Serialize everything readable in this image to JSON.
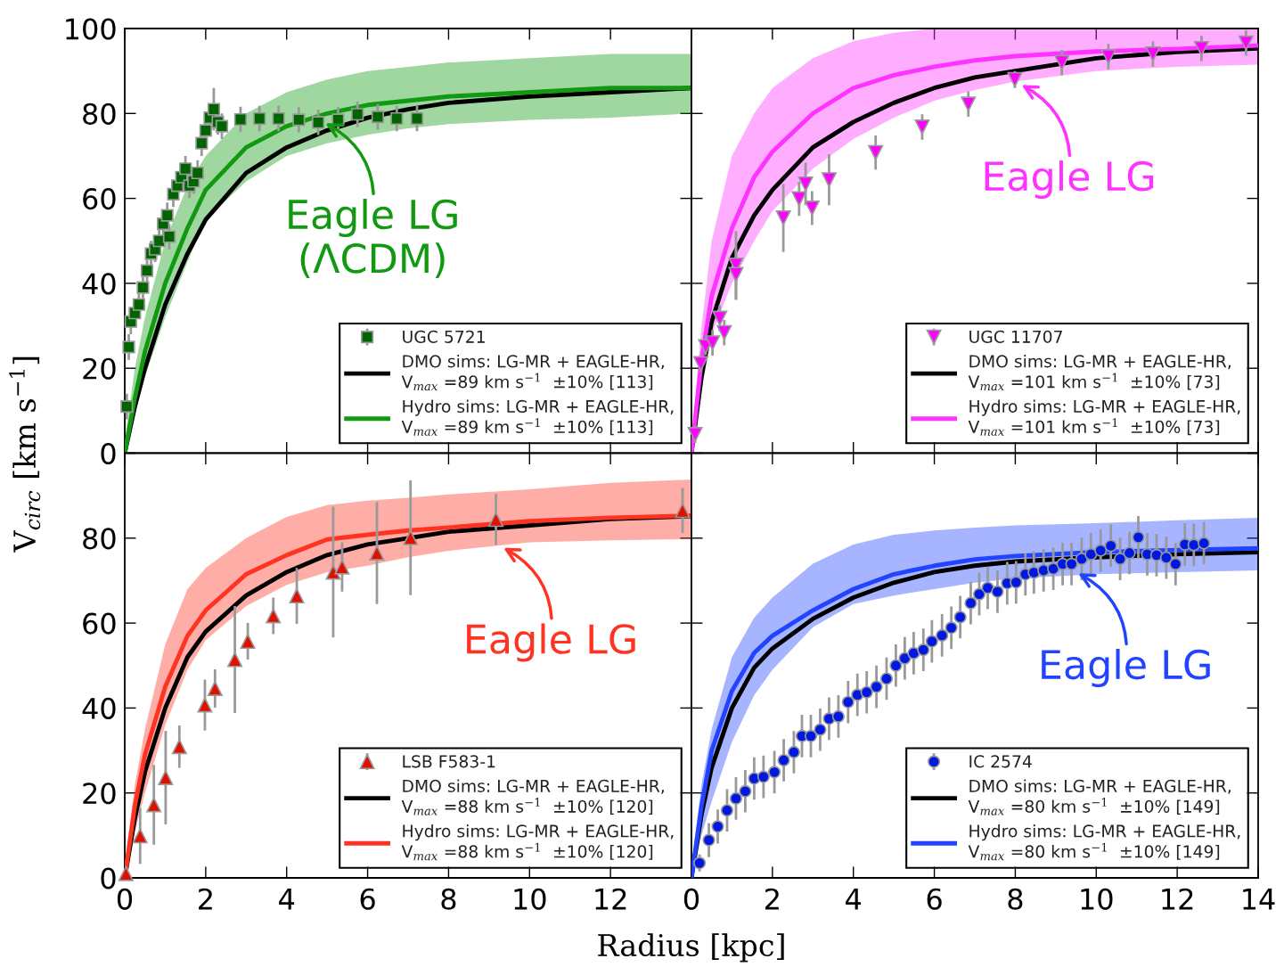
{
  "chart_data": [
    {
      "type": "line",
      "xlim": [
        0,
        14
      ],
      "ylim": [
        0,
        100
      ],
      "xticks": [
        0,
        2,
        4,
        6,
        8,
        10,
        12,
        14
      ],
      "yticks": [
        0,
        20,
        40,
        60,
        80,
        100
      ],
      "tick_labels": "y",
      "grid": false,
      "legend": "bottom right",
      "series": [
        {
          "type": "scatter",
          "name": "UGC 5721",
          "color": "#006400",
          "marker": "square",
          "x": [
            0.05,
            0.1,
            0.15,
            0.25,
            0.35,
            0.45,
            0.55,
            0.65,
            0.75,
            0.85,
            0.95,
            1.05,
            1.1,
            1.2,
            1.3,
            1.4,
            1.5,
            1.6,
            1.7,
            1.8,
            1.9,
            2.0,
            2.1,
            2.2,
            2.3,
            2.4,
            2.86,
            3.33,
            3.8,
            4.3,
            4.78,
            5.27,
            5.75,
            6.25,
            6.72,
            7.22
          ],
          "values": [
            11,
            25,
            31,
            33,
            35,
            39,
            43,
            47,
            48,
            50,
            54,
            56,
            51,
            61,
            63,
            65,
            67,
            63,
            64,
            66,
            73,
            76,
            79,
            81,
            78,
            77,
            78.6,
            78.8,
            78.8,
            78.5,
            77.9,
            78.5,
            79.8,
            79.2,
            78.8,
            78.8
          ],
          "errors": [
            3,
            3,
            3,
            3,
            3,
            3,
            3,
            3,
            3,
            3,
            3,
            3,
            3,
            3,
            3,
            3,
            3,
            3,
            3,
            3,
            3,
            3,
            3,
            5,
            3,
            3,
            3,
            3,
            3,
            3,
            3,
            3,
            3,
            3,
            3,
            3
          ]
        },
        {
          "type": "line",
          "name": "DMO sims: LG-MR + EAGLE-HR,\nV$_{max}$ =89 km s$^{−1}$  ±10% [113]",
          "color": "#000000",
          "x": [
            0,
            0.25,
            0.5,
            1,
            1.55,
            2,
            3,
            4,
            5,
            6,
            7,
            8,
            10,
            12,
            14
          ],
          "values": [
            0,
            11,
            20,
            35,
            47,
            55,
            66,
            72,
            76,
            79,
            81,
            82.5,
            84,
            85,
            86
          ]
        },
        {
          "type": "line",
          "name": "Hydro sims: LG-MR + EAGLE-HR,\nV$_{max}$ =89 km s$^{−1}$  ±10% [113]",
          "color": "#119911",
          "x": [
            0,
            0.25,
            0.5,
            1,
            1.55,
            2,
            3,
            4,
            5,
            6,
            7,
            8,
            10,
            12,
            14
          ],
          "values": [
            0,
            13,
            24,
            40,
            53,
            62,
            72,
            77,
            80,
            82,
            83,
            84,
            85,
            86,
            86
          ],
          "lower": [
            0,
            9,
            18,
            32,
            45,
            55,
            64,
            70,
            73,
            75,
            76.5,
            77.5,
            78.5,
            79,
            80
          ],
          "upper": [
            3,
            20,
            32,
            50,
            63,
            70,
            80,
            85,
            88,
            90,
            91,
            92,
            93,
            94,
            94
          ]
        }
      ],
      "annotations": [
        {
          "text": "Eagle LG",
          "x": 4.9,
          "y": 78
        },
        "(ΛCDM)"
      ]
    },
    {
      "type": "line",
      "xlim": [
        0,
        14
      ],
      "ylim": [
        0,
        100
      ],
      "xticks": [
        0,
        2,
        4,
        6,
        8,
        10,
        12,
        14
      ],
      "yticks": [
        0,
        20,
        40,
        60,
        80,
        100
      ],
      "tick_labels": false,
      "grid": false,
      "legend": "bottom right",
      "series": [
        {
          "type": "scatter",
          "name": "UGC 11707",
          "color": "#ff00ff",
          "marker": "triangle_down",
          "x": [
            0.09,
            0.23,
            0.35,
            0.52,
            0.7,
            0.81,
            1.1,
            1.1,
            2.27,
            2.66,
            2.82,
            2.98,
            3.4,
            4.55,
            5.7,
            6.84,
            7.99,
            9.15,
            10.3,
            11.4,
            12.6,
            13.7
          ],
          "values": [
            4.4,
            21.1,
            25.1,
            26,
            31.8,
            28.4,
            44.3,
            42.1,
            55.4,
            59.9,
            63.4,
            57.7,
            64.4,
            70.8,
            76.8,
            82.2,
            88,
            92,
            93.4,
            94,
            95.3,
            96.6
          ],
          "errors": [
            2,
            2,
            2,
            3,
            3,
            3,
            8,
            6,
            8,
            4,
            5,
            4,
            6,
            4,
            3,
            3,
            2,
            3,
            3,
            3,
            3,
            3
          ]
        },
        {
          "type": "line",
          "name": "DMO sims: LG-MR + EAGLE-HR,\nV$_{max}$ =101 km s$^{−1}$  ±10% [73]",
          "color": "#000000",
          "x": [
            0,
            0.25,
            0.5,
            1,
            1.55,
            2,
            3,
            4,
            5,
            6,
            7,
            8,
            10,
            12,
            14
          ],
          "values": [
            0,
            18,
            31,
            46,
            56,
            62,
            72,
            78,
            82.5,
            86,
            88.5,
            90,
            93,
            94.5,
            95.3
          ]
        },
        {
          "type": "line",
          "name": "Hydro sims: LG-MR + EAGLE-HR,\nV$_{max}$ =101 km s$^{−1}$  ±10% [73]",
          "color": "#ff33ff",
          "x": [
            0,
            0.25,
            0.5,
            1,
            1.55,
            2,
            3,
            4,
            5,
            6,
            7,
            8,
            10,
            12,
            14
          ],
          "values": [
            0,
            22,
            37,
            53,
            65,
            71,
            80,
            86,
            89,
            91,
            92.5,
            93.5,
            94.6,
            95.2,
            96
          ],
          "lower": [
            0,
            15,
            28,
            40,
            50,
            57,
            67,
            74,
            79,
            83,
            85.5,
            87.5,
            90,
            91,
            91.5
          ],
          "upper": [
            3,
            30,
            50,
            70,
            80,
            86,
            93,
            97,
            99,
            100,
            100,
            100,
            100,
            100,
            100
          ]
        }
      ],
      "annotations": [
        {
          "text": "Eagle LG",
          "x": 8.1,
          "y": 87
        }
      ]
    },
    {
      "type": "line",
      "xlabel": "Radius [kpc]",
      "ylabel": "V$_{circ}$ [km s$^{−1}$]",
      "xlim": [
        0,
        14
      ],
      "ylim": [
        0,
        100
      ],
      "xticks": [
        0,
        2,
        4,
        6,
        8,
        10,
        12,
        {
          "value": 14,
          "label": null
        }
      ],
      "yticks": [
        0,
        20,
        40,
        60,
        80,
        {
          "value": 100,
          "label": null
        }
      ],
      "grid": false,
      "legend": "bottom right",
      "series": [
        {
          "type": "scatter",
          "name": "LSB F583-1",
          "color": "#e01000",
          "marker": "triangle",
          "x": [
            0.03,
            0.38,
            0.72,
            1.01,
            1.35,
            1.98,
            2.23,
            2.72,
            3.04,
            3.67,
            4.25,
            5.15,
            5.37,
            6.23,
            7.06,
            9.17,
            13.78
          ],
          "values": [
            1,
            9.9,
            17.2,
            23.6,
            30.9,
            40.7,
            44.6,
            51.4,
            55.7,
            61.7,
            66.4,
            72,
            73.2,
            76.5,
            80.1,
            84.4,
            86.5
          ],
          "errors": [
            1,
            6.6,
            9.4,
            11,
            5,
            6,
            4.5,
            12.6,
            4.3,
            4.3,
            6.6,
            15.4,
            5.8,
            12,
            13.5,
            6,
            5.3
          ]
        },
        {
          "type": "line",
          "name": "DMO sims: LG-MR + EAGLE-HR,\nV$_{max}$ =88 km s$^{−1}$  ±10% [120]",
          "color": "#000000",
          "x": [
            0,
            0.25,
            0.5,
            1,
            1.55,
            2,
            3,
            4,
            5,
            6,
            7,
            8,
            10,
            12,
            14
          ],
          "values": [
            0,
            14,
            25,
            40,
            52,
            58,
            66.5,
            72,
            76,
            78.5,
            80,
            81.5,
            83,
            84.5,
            85.2
          ]
        },
        {
          "type": "line",
          "name": "Hydro sims: LG-MR + EAGLE-HR,\nV$_{max}$ =88 km s$^{−1}$  ±10% [120]",
          "color": "#ff3322",
          "x": [
            0,
            0.25,
            0.5,
            1,
            1.55,
            2,
            3,
            4,
            5,
            6,
            7,
            8,
            10,
            12,
            14
          ],
          "values": [
            0,
            17,
            29,
            45,
            57,
            63,
            71.5,
            76,
            79.7,
            80.8,
            81.8,
            82.5,
            84,
            84.8,
            85.3
          ],
          "lower": [
            0,
            11,
            20,
            36,
            49,
            56,
            64,
            69,
            72,
            73.5,
            75.5,
            77,
            79,
            79.5,
            79.8
          ],
          "upper": [
            3,
            22,
            35,
            55,
            68,
            73,
            80,
            85,
            87.8,
            88.8,
            89.5,
            90.3,
            91.5,
            93,
            93.8
          ]
        }
      ],
      "annotations": [
        {
          "text": "Eagle LG",
          "x": 9.3,
          "y": 78
        }
      ]
    },
    {
      "type": "line",
      "xlim": [
        0,
        14
      ],
      "ylim": [
        0,
        100
      ],
      "xticks": [
        0,
        2,
        4,
        6,
        8,
        10,
        12,
        14
      ],
      "yticks": [
        0,
        20,
        40,
        60,
        80,
        100
      ],
      "tick_labels": "x",
      "grid": false,
      "legend": "bottom right",
      "series": [
        {
          "type": "scatter",
          "name": "IC 2574",
          "color": "#0018e0",
          "marker": "circle",
          "x": [
            0.2,
            0.43,
            0.65,
            0.88,
            1.1,
            1.33,
            1.55,
            1.78,
            2.05,
            2.28,
            2.53,
            2.73,
            2.95,
            3.18,
            3.4,
            3.63,
            3.87,
            4.1,
            4.33,
            4.57,
            4.82,
            5.05,
            5.27,
            5.49,
            5.73,
            5.94,
            6.19,
            6.42,
            6.64,
            6.9,
            7.11,
            7.32,
            7.56,
            7.8,
            8.02,
            8.25,
            8.46,
            8.7,
            8.94,
            9.17,
            9.39,
            9.64,
            9.87,
            10.11,
            10.36,
            10.59,
            10.82,
            11.04,
            11.26,
            11.49,
            11.73,
            11.96,
            12.19,
            12.41,
            12.66
          ],
          "values": [
            3.5,
            8.9,
            12.1,
            15.9,
            18.7,
            20.4,
            23.4,
            23.8,
            24.9,
            27.7,
            29.6,
            33.4,
            33.4,
            34.9,
            37.5,
            38,
            41.4,
            43.1,
            43.7,
            45,
            46.9,
            50,
            51.7,
            52.9,
            53.7,
            55.7,
            57.1,
            58.9,
            61.4,
            64.7,
            66.8,
            68.3,
            67.4,
            69.4,
            69.6,
            71.5,
            71.9,
            72.4,
            72.8,
            73.9,
            73.9,
            75.1,
            76.2,
            77.1,
            78.2,
            75.1,
            76.5,
            80.2,
            76.2,
            76,
            75.4,
            73.9,
            78.5,
            78.4,
            78.8
          ],
          "errors": [
            2,
            4,
            4,
            5,
            5,
            5,
            5,
            5,
            5,
            5,
            5,
            5,
            5,
            5,
            5,
            5,
            5,
            5,
            5,
            5,
            5,
            5,
            5,
            5,
            5,
            5,
            5,
            5,
            5,
            5,
            5,
            5,
            5,
            5,
            5,
            5,
            5,
            5,
            5,
            5,
            5,
            5,
            5,
            5,
            5,
            5,
            5,
            5,
            5,
            5,
            5,
            5,
            5,
            5,
            5
          ]
        },
        {
          "type": "line",
          "name": "DMO sims: LG-MR + EAGLE-HR,\nV$_{max}$ =80 km s$^{−1}$  ±10% [149]",
          "color": "#000000",
          "x": [
            0,
            0.25,
            0.5,
            1,
            1.55,
            2,
            3,
            4,
            5,
            6,
            7,
            8,
            10,
            12,
            14
          ],
          "values": [
            0,
            15,
            26,
            40,
            49.5,
            54,
            61,
            66,
            69.5,
            72,
            73.5,
            74.5,
            75.5,
            76.2,
            76.7
          ]
        },
        {
          "type": "line",
          "name": "Hydro sims: LG-MR + EAGLE-HR,\nV$_{max}$ =80 km s$^{−1}$  ±10% [149]",
          "color": "#2244ff",
          "x": [
            0,
            0.25,
            0.5,
            1,
            1.55,
            2,
            3,
            4,
            5,
            6,
            7,
            8,
            10,
            12,
            14
          ],
          "values": [
            0,
            17,
            30,
            44,
            53,
            57,
            63,
            68,
            71.5,
            73.5,
            75,
            75.8,
            76.7,
            77.2,
            77.6
          ],
          "lower": [
            0,
            10,
            18,
            32,
            43,
            49,
            59,
            64.5,
            66.5,
            68,
            69.5,
            70.5,
            71.5,
            72,
            72.4
          ],
          "upper": [
            3,
            22,
            35,
            52,
            61.3,
            66,
            74,
            78.5,
            80.8,
            81.8,
            82.5,
            83,
            83.5,
            84.2,
            84.8
          ]
        }
      ],
      "annotations": [
        {
          "text": "Eagle LG",
          "x": 9.5,
          "y": 72
        }
      ]
    }
  ]
}
